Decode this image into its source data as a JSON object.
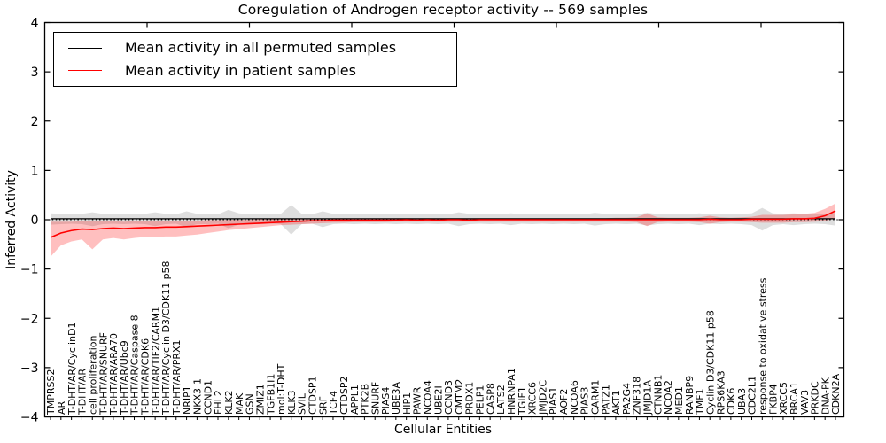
{
  "chart_data": {
    "type": "line",
    "title": "Coregulation of Androgen receptor activity -- 569 samples",
    "xlabel": "Cellular Entities",
    "ylabel": "Inferred Activity",
    "ylim": [
      -4,
      4
    ],
    "ytick_values": [
      4,
      3,
      2,
      1,
      0,
      -1,
      -2,
      -3,
      -4
    ],
    "ytick_labels": [
      "4",
      "3",
      "2",
      "1",
      "0",
      "−1",
      "−2",
      "−3",
      "−4"
    ],
    "grid": false,
    "legend_position": "upper left",
    "zero_line": {
      "y": 0,
      "style": "dotted",
      "color": "#000000"
    },
    "categories": [
      "TMPRSS2",
      "AR",
      "T-DHT/AR/CyclinD1",
      "T-DHT/AR",
      "cell proliferation",
      "T-DHT/AR/SNURF",
      "T-DHT/AR/ARA70",
      "T-DHT/AR/Ubc9",
      "T-DHT/AR/Caspase 8",
      "T-DHT/AR/CDK6",
      "T-DHT/AR/TIF2/CARM1",
      "T-DHT/AR/Cyclin D3/CDK11 p58",
      "T-DHT/AR/PRX1",
      "NRIP1",
      "NKX3-1",
      "CCND1",
      "FHL2",
      "KLK2",
      "MAK",
      "GSN",
      "ZMIZ1",
      "TGFB1I1",
      "mol:T-DHT",
      "KLK3",
      "SVIL",
      "CTDSP1",
      "SRF",
      "TCF4",
      "CTDSP2",
      "APPL1",
      "PTK2B",
      "SNURF",
      "PIAS4",
      "UBE3A",
      "HIP1",
      "PAWR",
      "NCOA4",
      "UBE2I",
      "CCND3",
      "CMTM2",
      "PRDX1",
      "PELP1",
      "CASP8",
      "LATS2",
      "HNRNPA1",
      "TGIF1",
      "XRCC6",
      "JMJD2C",
      "PIAS1",
      "AOF2",
      "NCOA6",
      "PIAS3",
      "CARM1",
      "PATZ1",
      "AKT1",
      "PA2G4",
      "ZNF318",
      "JMJD1A",
      "CTNNB1",
      "NCOA2",
      "MED1",
      "RANBP9",
      "TMF1",
      "Cyclin D3/CDK11 p58",
      "RPS6KA3",
      "CDK6",
      "UBA3",
      "CDC2L1",
      "response to oxidative stress",
      "FKBP4",
      "XRCC5",
      "BRCA1",
      "VAV3",
      "PRKDC",
      "DNA-PK",
      "CDKN2A"
    ],
    "series": [
      {
        "name": "Mean activity in all permuted samples",
        "color": "#000000",
        "band_color": "#999999",
        "band_opacity": 0.32,
        "values": [
          0.02,
          0.02,
          0.02,
          0.02,
          0.02,
          0.02,
          0.02,
          0.02,
          0.02,
          0.02,
          0.02,
          0.02,
          0.02,
          0.02,
          0.02,
          0.02,
          0.02,
          0.02,
          0.02,
          0.02,
          0.02,
          0.02,
          0.02,
          0.02,
          0.02,
          0.02,
          0.02,
          0.02,
          0.02,
          0.02,
          0.02,
          0.02,
          0.02,
          0.02,
          0.02,
          0.02,
          0.02,
          0.02,
          0.02,
          0.02,
          0.02,
          0.02,
          0.02,
          0.02,
          0.02,
          0.02,
          0.02,
          0.02,
          0.02,
          0.02,
          0.02,
          0.02,
          0.02,
          0.02,
          0.02,
          0.02,
          0.02,
          0.02,
          0.02,
          0.02,
          0.02,
          0.02,
          0.02,
          0.02,
          0.02,
          0.02,
          0.02,
          0.02,
          0.02,
          0.02,
          0.02,
          0.02,
          0.02,
          0.02,
          0.02,
          0.02
        ],
        "band_upper": [
          0.13,
          0.12,
          0.11,
          0.12,
          0.15,
          0.12,
          0.11,
          0.12,
          0.11,
          0.12,
          0.15,
          0.12,
          0.11,
          0.17,
          0.12,
          0.12,
          0.11,
          0.2,
          0.13,
          0.11,
          0.12,
          0.11,
          0.12,
          0.3,
          0.12,
          0.11,
          0.17,
          0.12,
          0.11,
          0.12,
          0.11,
          0.12,
          0.11,
          0.12,
          0.11,
          0.12,
          0.11,
          0.12,
          0.11,
          0.15,
          0.12,
          0.11,
          0.12,
          0.11,
          0.13,
          0.11,
          0.12,
          0.11,
          0.12,
          0.11,
          0.12,
          0.11,
          0.14,
          0.12,
          0.11,
          0.12,
          0.11,
          0.14,
          0.12,
          0.11,
          0.12,
          0.11,
          0.13,
          0.11,
          0.12,
          0.11,
          0.12,
          0.13,
          0.24,
          0.13,
          0.12,
          0.13,
          0.12,
          0.11,
          0.12,
          0.14
        ],
        "band_lower": [
          -0.1,
          -0.09,
          -0.08,
          -0.09,
          -0.13,
          -0.09,
          -0.08,
          -0.09,
          -0.08,
          -0.09,
          -0.13,
          -0.09,
          -0.08,
          -0.15,
          -0.09,
          -0.09,
          -0.08,
          -0.17,
          -0.1,
          -0.08,
          -0.09,
          -0.08,
          -0.09,
          -0.3,
          -0.09,
          -0.08,
          -0.15,
          -0.09,
          -0.08,
          -0.09,
          -0.08,
          -0.09,
          -0.08,
          -0.09,
          -0.08,
          -0.09,
          -0.08,
          -0.09,
          -0.08,
          -0.13,
          -0.09,
          -0.08,
          -0.09,
          -0.08,
          -0.11,
          -0.08,
          -0.09,
          -0.08,
          -0.09,
          -0.08,
          -0.09,
          -0.08,
          -0.12,
          -0.09,
          -0.08,
          -0.09,
          -0.08,
          -0.12,
          -0.09,
          -0.08,
          -0.09,
          -0.08,
          -0.11,
          -0.08,
          -0.09,
          -0.08,
          -0.09,
          -0.11,
          -0.22,
          -0.11,
          -0.09,
          -0.11,
          -0.09,
          -0.08,
          -0.09,
          -0.12
        ]
      },
      {
        "name": "Mean activity in patient samples",
        "color": "#ff0000",
        "band_color": "#ff0000",
        "band_opacity": 0.25,
        "values": [
          -0.36,
          -0.27,
          -0.22,
          -0.19,
          -0.2,
          -0.18,
          -0.17,
          -0.18,
          -0.17,
          -0.16,
          -0.16,
          -0.15,
          -0.15,
          -0.14,
          -0.13,
          -0.12,
          -0.11,
          -0.1,
          -0.09,
          -0.08,
          -0.07,
          -0.06,
          -0.05,
          -0.04,
          -0.03,
          -0.02,
          -0.02,
          -0.01,
          -0.01,
          -0.01,
          -0.01,
          -0.01,
          -0.01,
          -0.01,
          0.0,
          -0.01,
          0.0,
          -0.01,
          0.0,
          0.0,
          -0.01,
          0.0,
          0.0,
          0.0,
          0.0,
          0.0,
          0.0,
          0.0,
          0.0,
          0.0,
          0.0,
          0.0,
          0.0,
          0.0,
          0.0,
          0.0,
          0.0,
          0.0,
          0.0,
          0.0,
          0.0,
          0.0,
          0.0,
          0.01,
          0.0,
          0.0,
          0.0,
          0.01,
          0.01,
          0.01,
          0.01,
          0.02,
          0.02,
          0.03,
          0.08,
          0.18
        ],
        "band_upper": [
          -0.04,
          -0.04,
          -0.04,
          -0.03,
          -0.03,
          -0.03,
          -0.03,
          -0.04,
          -0.03,
          -0.03,
          -0.03,
          -0.03,
          -0.02,
          -0.02,
          -0.02,
          -0.01,
          -0.01,
          0.0,
          0.0,
          0.0,
          0.01,
          0.01,
          0.01,
          0.02,
          0.02,
          0.02,
          0.02,
          0.03,
          0.03,
          0.03,
          0.03,
          0.03,
          0.03,
          0.03,
          0.03,
          0.03,
          0.03,
          0.03,
          0.03,
          0.03,
          0.03,
          0.03,
          0.03,
          0.03,
          0.03,
          0.03,
          0.03,
          0.03,
          0.03,
          0.03,
          0.03,
          0.03,
          0.03,
          0.03,
          0.04,
          0.04,
          0.05,
          0.13,
          0.05,
          0.04,
          0.04,
          0.04,
          0.05,
          0.08,
          0.05,
          0.04,
          0.05,
          0.06,
          0.1,
          0.1,
          0.1,
          0.11,
          0.12,
          0.14,
          0.22,
          0.33
        ],
        "band_lower": [
          -0.75,
          -0.52,
          -0.44,
          -0.4,
          -0.6,
          -0.4,
          -0.37,
          -0.4,
          -0.37,
          -0.35,
          -0.35,
          -0.34,
          -0.34,
          -0.32,
          -0.3,
          -0.27,
          -0.24,
          -0.21,
          -0.19,
          -0.17,
          -0.15,
          -0.13,
          -0.11,
          -0.1,
          -0.09,
          -0.08,
          -0.07,
          -0.06,
          -0.06,
          -0.05,
          -0.05,
          -0.05,
          -0.05,
          -0.04,
          -0.04,
          -0.04,
          -0.04,
          -0.04,
          -0.04,
          -0.04,
          -0.04,
          -0.04,
          -0.04,
          -0.04,
          -0.04,
          -0.04,
          -0.04,
          -0.04,
          -0.04,
          -0.04,
          -0.04,
          -0.04,
          -0.04,
          -0.04,
          -0.04,
          -0.04,
          -0.05,
          -0.13,
          -0.05,
          -0.04,
          -0.04,
          -0.04,
          -0.05,
          -0.08,
          -0.05,
          -0.04,
          -0.04,
          -0.05,
          -0.06,
          -0.06,
          -0.06,
          -0.05,
          -0.05,
          -0.04,
          -0.03,
          0.03
        ]
      }
    ]
  }
}
